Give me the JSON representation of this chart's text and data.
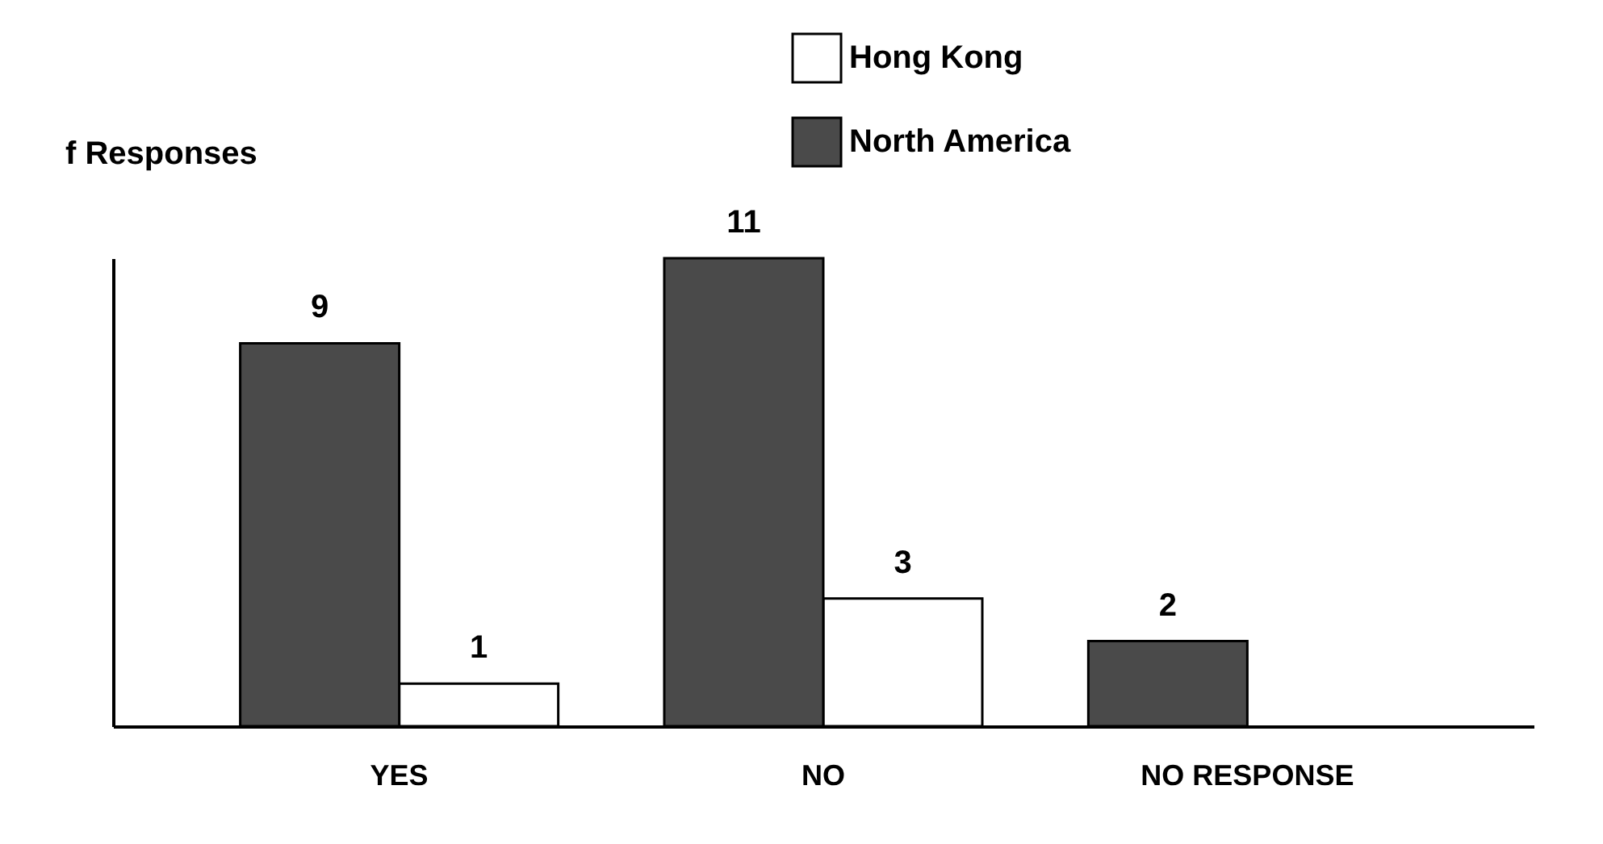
{
  "chart_data": {
    "type": "bar",
    "ylabel": "f Responses",
    "categories": [
      "YES",
      "NO",
      "NO RESPONSE"
    ],
    "series": [
      {
        "name": "Hong Kong",
        "color": "#ffffff",
        "values": [
          1,
          3,
          null
        ]
      },
      {
        "name": "North America",
        "color": "#4a4a4a",
        "values": [
          9,
          11,
          2
        ]
      }
    ],
    "data_labels": true,
    "legend": "top",
    "grid": false,
    "tick_labels": "x"
  }
}
